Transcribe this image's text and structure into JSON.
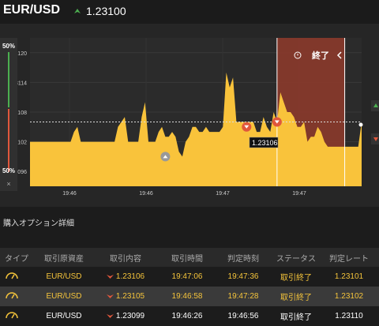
{
  "header": {
    "pair": "EUR/USD",
    "price": "1.23100",
    "trend": "up"
  },
  "left_panel": {
    "top_label": "50%",
    "bottom_label": "50%",
    "close": "×"
  },
  "chart": {
    "end_label": "終了",
    "current_marker": "1.23106",
    "y_ticks": [
      "1.23120",
      "1.23114",
      "1.23108",
      "1.23102",
      "1.23096"
    ],
    "x_ticks": [
      "19:46",
      "19:46",
      "19:47",
      "19:47"
    ],
    "colors": {
      "area": "#f9c33b",
      "expiry_zone": "#8b3a2b",
      "up": "#4caf50",
      "down": "#e0573c"
    }
  },
  "chart_data": {
    "type": "area",
    "title": "",
    "ylim": [
      1.23093,
      1.23123
    ],
    "y_tick_values": [
      1.2312,
      1.23114,
      1.23108,
      1.23102,
      1.23096
    ],
    "x_ticks": [
      "19:46",
      "19:46",
      "19:47",
      "19:47"
    ],
    "series": [
      {
        "values": [
          1.23102,
          1.23102,
          1.23102,
          1.23102,
          1.23102,
          1.23102,
          1.23102,
          1.23102,
          1.23102,
          1.23102,
          1.23102,
          1.23102,
          1.23102,
          1.23104,
          1.23105,
          1.23102,
          1.23102,
          1.23102,
          1.23102,
          1.23102,
          1.23102,
          1.23102,
          1.23102,
          1.23102,
          1.23102,
          1.23102,
          1.23105,
          1.23106,
          1.23107,
          1.23102,
          1.23102,
          1.23102,
          1.23102,
          1.23107,
          1.2311,
          1.23102,
          1.23102,
          1.23102,
          1.23104,
          1.23105,
          1.23103,
          1.23103,
          1.23104,
          1.23103,
          1.231,
          1.23099,
          1.23102,
          1.23103,
          1.23105,
          1.23105,
          1.23104,
          1.23104,
          1.23105,
          1.23104,
          1.23104,
          1.23104,
          1.23104,
          1.23105,
          1.23116,
          1.23113,
          1.23115,
          1.23106,
          1.23106,
          1.23106,
          1.23106,
          1.23106,
          1.23106,
          1.23104,
          1.23104,
          1.23107,
          1.23105,
          1.23104,
          1.23108,
          1.23106,
          1.23112,
          1.2311,
          1.23108,
          1.23108,
          1.23107,
          1.23105,
          1.23105,
          1.23106,
          1.23102,
          1.23103,
          1.23103,
          1.23105,
          1.23104,
          1.23102,
          1.23101,
          1.23101,
          1.23101,
          1.23101,
          1.23101,
          1.23101,
          1.23101,
          1.23101,
          1.23101,
          1.23101,
          1.23106
        ]
      }
    ],
    "markers": [
      {
        "type": "up",
        "index": 40,
        "value": 1.23099
      },
      {
        "type": "down",
        "index": 64,
        "value": 1.23105
      },
      {
        "type": "down",
        "index": 73,
        "value": 1.23106
      }
    ],
    "reference_line": 1.23106,
    "expiry_zone": {
      "start_index": 73,
      "end_index": 93
    },
    "grid": true
  },
  "section_title": "購入オプション詳細",
  "table": {
    "headers": [
      "タイプ",
      "取引原資産",
      "取引内容",
      "取引時間",
      "判定時刻",
      "ステータス",
      "判定レート"
    ],
    "rows": [
      {
        "asset": "EUR/USD",
        "content": "1.23106",
        "time": "19:47:06",
        "judge": "19:47:36",
        "status": "取引終了",
        "rate": "1.23101"
      },
      {
        "asset": "EUR/USD",
        "content": "1.23105",
        "time": "19:46:58",
        "judge": "19:47:28",
        "status": "取引終了",
        "rate": "1.23102"
      },
      {
        "asset": "EUR/USD",
        "content": "1.23099",
        "time": "19:46:26",
        "judge": "19:46:56",
        "status": "取引終了",
        "rate": "1.23110"
      }
    ]
  }
}
